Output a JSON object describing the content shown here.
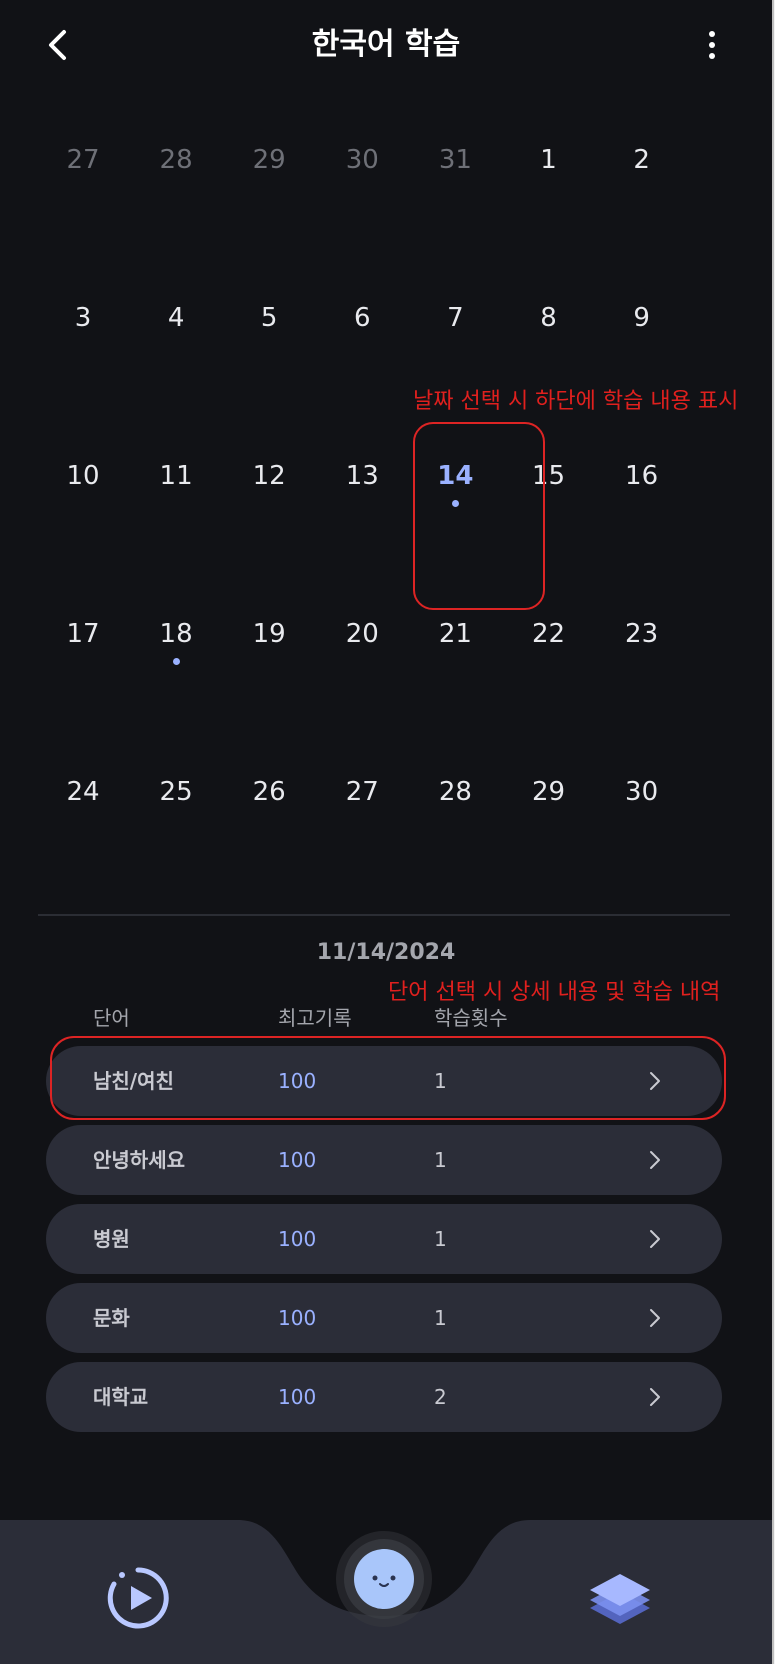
{
  "header": {
    "title": "한국어 학습"
  },
  "icons": {
    "back": "chevron-left-icon",
    "menu": "more-vertical-icon",
    "history": "play-history-icon",
    "character": "character-face-icon",
    "layers": "layers-icon",
    "row_chevron": "chevron-right-icon"
  },
  "calendar": {
    "weeks": [
      [
        {
          "day": "27",
          "muted": true
        },
        {
          "day": "28",
          "muted": true
        },
        {
          "day": "29",
          "muted": true
        },
        {
          "day": "30",
          "muted": true
        },
        {
          "day": "31",
          "muted": true
        },
        {
          "day": "1"
        },
        {
          "day": "2"
        }
      ],
      [
        {
          "day": "3"
        },
        {
          "day": "4"
        },
        {
          "day": "5"
        },
        {
          "day": "6"
        },
        {
          "day": "7"
        },
        {
          "day": "8"
        },
        {
          "day": "9"
        }
      ],
      [
        {
          "day": "10"
        },
        {
          "day": "11"
        },
        {
          "day": "12"
        },
        {
          "day": "13"
        },
        {
          "day": "14",
          "selected": true,
          "dot": true
        },
        {
          "day": "15"
        },
        {
          "day": "16"
        }
      ],
      [
        {
          "day": "17"
        },
        {
          "day": "18",
          "dot": true
        },
        {
          "day": "19"
        },
        {
          "day": "20"
        },
        {
          "day": "21"
        },
        {
          "day": "22"
        },
        {
          "day": "23"
        }
      ],
      [
        {
          "day": "24"
        },
        {
          "day": "25"
        },
        {
          "day": "26"
        },
        {
          "day": "27"
        },
        {
          "day": "28"
        },
        {
          "day": "29"
        },
        {
          "day": "30"
        }
      ]
    ]
  },
  "annotations": {
    "date_note": "날짜 선택 시 하단에 학습 내용 표시",
    "word_note": "단어 선택 시 상세 내용 및 학습 내역"
  },
  "study": {
    "date": "11/14/2024",
    "columns": {
      "word": "단어",
      "best": "최고기록",
      "count": "학습횟수"
    },
    "rows": [
      {
        "word": "남친/여친",
        "best": "100",
        "count": "1"
      },
      {
        "word": "안녕하세요",
        "best": "100",
        "count": "1"
      },
      {
        "word": "병원",
        "best": "100",
        "count": "1"
      },
      {
        "word": "문화",
        "best": "100",
        "count": "1"
      },
      {
        "word": "대학교",
        "best": "100",
        "count": "2"
      }
    ]
  },
  "colors": {
    "background": "#111216",
    "accent": "#9ab1ff",
    "row": "#2b2d38",
    "annotation": "#e0201e"
  }
}
